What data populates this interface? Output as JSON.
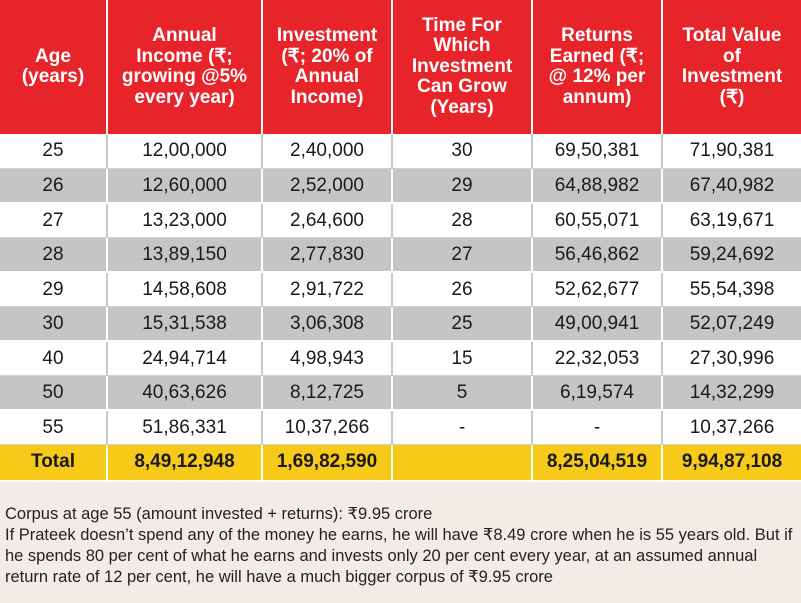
{
  "headers": [
    "Age (years)",
    "Annual Income (₹; growing @5% every year)",
    "Investment (₹; 20% of Annual Income)",
    "Time For Which Investment Can Grow (Years)",
    "Returns Earned (₹; @ 12% per annum)",
    "Total Value of Investment (₹)"
  ],
  "rows": [
    {
      "age": "25",
      "income": "12,00,000",
      "investment": "2,40,000",
      "time": "30",
      "returns": "69,50,381",
      "total": "71,90,381"
    },
    {
      "age": "26",
      "income": "12,60,000",
      "investment": "2,52,000",
      "time": "29",
      "returns": "64,88,982",
      "total": "67,40,982"
    },
    {
      "age": "27",
      "income": "13,23,000",
      "investment": "2,64,600",
      "time": "28",
      "returns": "60,55,071",
      "total": "63,19,671"
    },
    {
      "age": "28",
      "income": "13,89,150",
      "investment": "2,77,830",
      "time": "27",
      "returns": "56,46,862",
      "total": "59,24,692"
    },
    {
      "age": "29",
      "income": "14,58,608",
      "investment": "2,91,722",
      "time": "26",
      "returns": "52,62,677",
      "total": "55,54,398"
    },
    {
      "age": "30",
      "income": "15,31,538",
      "investment": "3,06,308",
      "time": "25",
      "returns": "49,00,941",
      "total": "52,07,249"
    },
    {
      "age": "40",
      "income": "24,94,714",
      "investment": "4,98,943",
      "time": "15",
      "returns": "22,32,053",
      "total": "27,30,996"
    },
    {
      "age": "50",
      "income": "40,63,626",
      "investment": "8,12,725",
      "time": "5",
      "returns": "6,19,574",
      "total": "14,32,299"
    },
    {
      "age": "55",
      "income": "51,86,331",
      "investment": "10,37,266",
      "time": "-",
      "returns": "-",
      "total": "10,37,266"
    }
  ],
  "total_row": {
    "label": "Total",
    "income": "8,49,12,948",
    "investment": "1,69,82,590",
    "time": "",
    "returns": "8,25,04,519",
    "total": "9,94,87,108"
  },
  "notes": {
    "line1": "Corpus at age 55 (amount invested + returns): ₹9.95 crore",
    "line2": "If Prateek doesn’t spend any of the money he earns, he will have ₹8.49 crore when he is 55 years old. But if he spends 80 per cent of what he earns and invests only 20 per cent every year, at an assumed annual return rate of 12 per cent, he will have a much bigger corpus of ₹9.95 crore"
  },
  "colors": {
    "header_bg": "#e8242b",
    "row_alt": "#c5c5c5",
    "total_bg": "#f7c919",
    "page_bg": "#f0ede6"
  }
}
